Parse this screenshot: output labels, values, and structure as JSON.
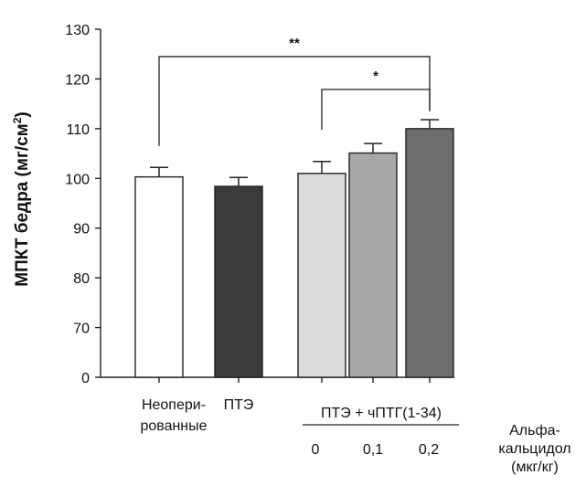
{
  "chart_data": {
    "type": "bar",
    "ylabel": "МПКТ бедра (мг/см²)",
    "ylabel_parts": {
      "main": "МПКТ бедра (мг/см",
      "sup": "2",
      "end": ")"
    },
    "y_ticks": [
      "130",
      "120",
      "110",
      "100",
      "90",
      "80",
      "70",
      "0"
    ],
    "y_tick_values": [
      130,
      120,
      110,
      100,
      90,
      80,
      70,
      60
    ],
    "axis_break": "the lowest tick is labelled 0 although spacing continues at 10 per step",
    "ylim": [
      60,
      130
    ],
    "bars": [
      {
        "label_lines": [
          "Неопери-",
          "рованные"
        ],
        "value": 100.3,
        "error": 1.9,
        "color": "#ffffff"
      },
      {
        "label_lines": [
          "ПТЭ"
        ],
        "value": 98.4,
        "error": 1.8,
        "color": "#3b3b3b"
      },
      {
        "label_lines": [],
        "value": 101.0,
        "error": 2.4,
        "color": "#dcdcdc"
      },
      {
        "label_lines": [],
        "value": 105.1,
        "error": 1.9,
        "color": "#a8a8a8"
      },
      {
        "label_lines": [],
        "value": 110.0,
        "error": 1.8,
        "color": "#6e6e6e"
      }
    ],
    "group_label": "ПТЭ + чПТГ(1-34)",
    "dose_values": [
      "0",
      "0,1",
      "0,2"
    ],
    "dose_title_lines": [
      "Альфа-",
      "кальцидол",
      "(мкг/кг)"
    ],
    "significance": [
      {
        "from": 0,
        "to": 4,
        "label": "**",
        "level": 124.5,
        "left_end": 106.5,
        "right_end": 113.5
      },
      {
        "from": 2,
        "to": 4,
        "label": "*",
        "level": 117.9,
        "left_end": 109.8,
        "right_end": 113.8
      }
    ]
  }
}
